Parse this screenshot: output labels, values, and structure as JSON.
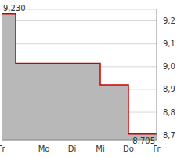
{
  "chart_data": {
    "type": "area",
    "line_style": "step",
    "categories": [
      "Fr",
      null,
      null,
      "Mo",
      null,
      "Di",
      null,
      "Mi",
      null,
      "Do",
      null,
      "Fr"
    ],
    "values": [
      9.23,
      9.015,
      9.015,
      9.015,
      9.015,
      9.015,
      9.015,
      8.92,
      8.92,
      8.705,
      8.705,
      8.705
    ],
    "color": "#cc0000",
    "ylim": [
      8.68,
      9.25
    ],
    "yticks": [
      {
        "value": 8.7,
        "label": "8,7"
      },
      {
        "value": 8.8,
        "label": "8,8"
      },
      {
        "value": 8.9,
        "label": "8,9"
      },
      {
        "value": 9.0,
        "label": "9,0"
      },
      {
        "value": 9.1,
        "label": "9,1"
      },
      {
        "value": 9.2,
        "label": "9,2"
      }
    ],
    "grid": true,
    "annotations": [
      {
        "text": "9,230",
        "x": 0,
        "y": 9.23
      },
      {
        "text": "8,705",
        "x": 11,
        "y": 8.705
      }
    ]
  }
}
